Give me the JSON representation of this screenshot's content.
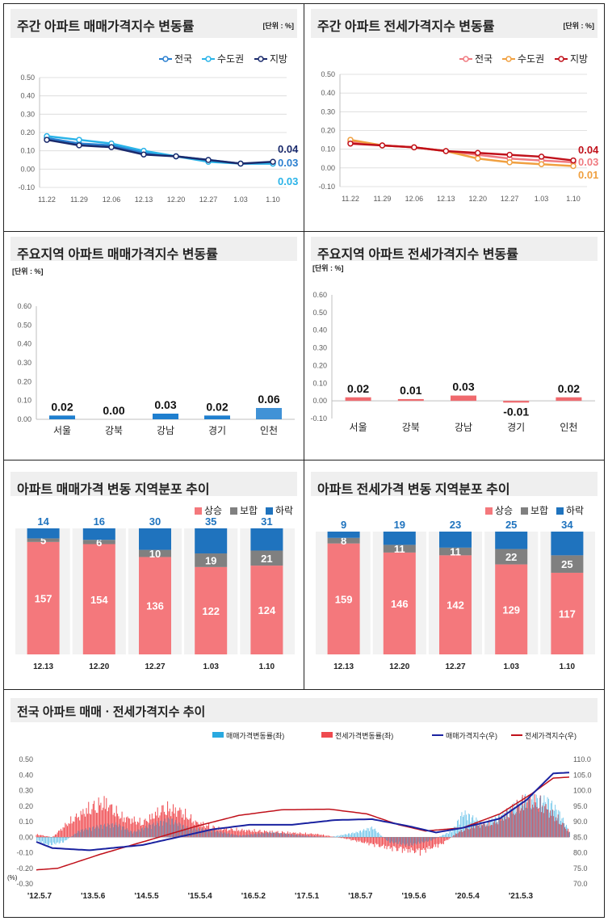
{
  "panels": {
    "p1": {
      "title": "주간 아파트 매매가격지수 변동률",
      "unit": "[단위 : %]"
    },
    "p2": {
      "title": "주간 아파트 전세가격지수 변동률",
      "unit": "[단위 : %]"
    },
    "p3": {
      "title": "주요지역 아파트 매매가격지수 변동률",
      "unit": "[단위 : %]"
    },
    "p4": {
      "title": "주요지역 아파트 전세가격지수 변동률",
      "unit": "[단위 : %]"
    },
    "p5": {
      "title": "아파트 매매가격 변동 지역분포 추이"
    },
    "p6": {
      "title": "아파트 전세가격 변동 지역분포 추이"
    },
    "p7": {
      "title": "전국 아파트 매매ㆍ전세가격지수 추이"
    }
  },
  "chart_data": [
    {
      "id": "weekly_sale",
      "type": "line",
      "x": [
        "11.22",
        "11.29",
        "12.06",
        "12.13",
        "12.20",
        "12.27",
        "1.03",
        "1.10"
      ],
      "ylim": [
        -0.1,
        0.5
      ],
      "yticks": [
        "-0.10",
        "0.00",
        "0.10",
        "0.20",
        "0.30",
        "0.40",
        "0.50"
      ],
      "series": [
        {
          "name": "전국",
          "color": "#2a7fd0",
          "values": [
            0.17,
            0.14,
            0.13,
            0.09,
            0.07,
            0.05,
            0.03,
            0.03
          ],
          "end_label": "0.03"
        },
        {
          "name": "수도권",
          "color": "#29b3e8",
          "values": [
            0.18,
            0.16,
            0.14,
            0.1,
            0.07,
            0.04,
            0.03,
            0.03
          ],
          "end_label": "0.03"
        },
        {
          "name": "지방",
          "color": "#1a2a6c",
          "values": [
            0.16,
            0.13,
            0.12,
            0.08,
            0.07,
            0.05,
            0.03,
            0.04
          ],
          "end_label": "0.04"
        }
      ]
    },
    {
      "id": "weekly_jeonse",
      "type": "line",
      "x": [
        "11.22",
        "11.29",
        "12.06",
        "12.13",
        "12.20",
        "12.27",
        "1.03",
        "1.10"
      ],
      "ylim": [
        -0.1,
        0.5
      ],
      "yticks": [
        "-0.10",
        "0.00",
        "0.10",
        "0.20",
        "0.30",
        "0.40",
        "0.50"
      ],
      "series": [
        {
          "name": "전국",
          "color": "#f07a80",
          "values": [
            0.14,
            0.12,
            0.11,
            0.09,
            0.07,
            0.05,
            0.04,
            0.03
          ],
          "end_label": "0.03"
        },
        {
          "name": "수도권",
          "color": "#f0a040",
          "values": [
            0.15,
            0.12,
            0.11,
            0.09,
            0.05,
            0.03,
            0.02,
            0.01
          ],
          "end_label": "0.01"
        },
        {
          "name": "지방",
          "color": "#c0101a",
          "values": [
            0.13,
            0.12,
            0.11,
            0.09,
            0.08,
            0.07,
            0.06,
            0.04
          ],
          "end_label": "0.04"
        }
      ]
    },
    {
      "id": "region_sale",
      "type": "bar",
      "categories": [
        "서울",
        "강북",
        "강남",
        "경기",
        "인천"
      ],
      "values": [
        0.02,
        0.0,
        0.03,
        0.02,
        0.06
      ],
      "labels": [
        "0.02",
        "0.00",
        "0.03",
        "0.02",
        "0.06"
      ],
      "ylim": [
        0,
        0.6
      ],
      "yticks": [
        "0.00",
        "0.10",
        "0.20",
        "0.30",
        "0.40",
        "0.50",
        "0.60"
      ]
    },
    {
      "id": "region_jeonse",
      "type": "bar",
      "categories": [
        "서울",
        "강북",
        "강남",
        "경기",
        "인천"
      ],
      "values": [
        0.02,
        0.01,
        0.03,
        -0.01,
        0.02
      ],
      "labels": [
        "0.02",
        "0.01",
        "0.03",
        "-0.01",
        "0.02"
      ],
      "ylim": [
        -0.1,
        0.6
      ],
      "yticks": [
        "-0.10",
        "0.00",
        "0.10",
        "0.20",
        "0.30",
        "0.40",
        "0.50",
        "0.60"
      ]
    },
    {
      "id": "dist_sale",
      "type": "bar",
      "stacked": true,
      "categories": [
        "12.13",
        "12.20",
        "12.27",
        "1.03",
        "1.10"
      ],
      "legend": [
        "상승",
        "보합",
        "하락"
      ],
      "colors": [
        "#f4787c",
        "#808080",
        "#1f73be"
      ],
      "series": [
        {
          "name": "상승",
          "values": [
            157,
            154,
            136,
            122,
            124
          ]
        },
        {
          "name": "보합",
          "values": [
            5,
            6,
            10,
            19,
            21
          ]
        },
        {
          "name": "하락",
          "values": [
            14,
            16,
            30,
            35,
            31
          ]
        }
      ]
    },
    {
      "id": "dist_jeonse",
      "type": "bar",
      "stacked": true,
      "categories": [
        "12.13",
        "12.20",
        "12.27",
        "1.03",
        "1.10"
      ],
      "legend": [
        "상승",
        "보합",
        "하락"
      ],
      "colors": [
        "#f4787c",
        "#808080",
        "#1f73be"
      ],
      "series": [
        {
          "name": "상승",
          "values": [
            159,
            146,
            142,
            129,
            117
          ]
        },
        {
          "name": "보합",
          "values": [
            8,
            11,
            11,
            22,
            25
          ]
        },
        {
          "name": "하락",
          "values": [
            9,
            19,
            23,
            25,
            34
          ]
        }
      ]
    },
    {
      "id": "national_trend",
      "type": "line",
      "x_ticks": [
        "'12.5.7",
        "'13.5.6",
        "'14.5.5",
        "'15.5.4",
        "'16.5.2",
        "'17.5.1",
        "'18.5.7",
        "'19.5.6",
        "'20.5.4",
        "'21.5.3"
      ],
      "y_left": [
        "-0.30",
        "-0.20",
        "-0.10",
        "0.00",
        "0.10",
        "0.20",
        "0.30",
        "0.40",
        "0.50"
      ],
      "y_left_unit": "(%)",
      "y_right": [
        "70.0",
        "75.0",
        "80.0",
        "85.0",
        "90.0",
        "95.0",
        "100.0",
        "105.0",
        "110.0"
      ],
      "legend": [
        "매매가격변동률(좌)",
        "전세가격변동률(좌)",
        "매매가격지수(우)",
        "전세가격지수(우)"
      ],
      "colors": [
        "#29a9e0",
        "#ef4a4f",
        "#1a22a0",
        "#c0101a"
      ],
      "sale_index_knots": [
        [
          0,
          83.5
        ],
        [
          0.03,
          81.5
        ],
        [
          0.1,
          80.8
        ],
        [
          0.2,
          82.5
        ],
        [
          0.26,
          84.8
        ],
        [
          0.33,
          87.5
        ],
        [
          0.4,
          89.0
        ],
        [
          0.48,
          89.0
        ],
        [
          0.56,
          90.5
        ],
        [
          0.63,
          90.8
        ],
        [
          0.7,
          88.5
        ],
        [
          0.75,
          86.5
        ],
        [
          0.8,
          88.0
        ],
        [
          0.87,
          91.0
        ],
        [
          0.92,
          97.0
        ],
        [
          0.97,
          105.5
        ],
        [
          1,
          105.8
        ]
      ],
      "jeonse_index_knots": [
        [
          0,
          74.5
        ],
        [
          0.04,
          75.0
        ],
        [
          0.12,
          79.5
        ],
        [
          0.2,
          83.5
        ],
        [
          0.3,
          88.5
        ],
        [
          0.38,
          92.0
        ],
        [
          0.46,
          93.8
        ],
        [
          0.55,
          94.0
        ],
        [
          0.62,
          92.5
        ],
        [
          0.68,
          89.0
        ],
        [
          0.73,
          87.0
        ],
        [
          0.8,
          88.0
        ],
        [
          0.87,
          92.5
        ],
        [
          0.93,
          99.0
        ],
        [
          0.97,
          104.0
        ],
        [
          1,
          104.3
        ]
      ],
      "sale_change_knots": [
        [
          0,
          -0.02
        ],
        [
          0.02,
          -0.05
        ],
        [
          0.05,
          -0.03
        ],
        [
          0.08,
          0.04
        ],
        [
          0.12,
          0.07
        ],
        [
          0.15,
          0.08
        ],
        [
          0.18,
          0.03
        ],
        [
          0.22,
          0.08
        ],
        [
          0.25,
          0.11
        ],
        [
          0.28,
          0.06
        ],
        [
          0.33,
          0.04
        ],
        [
          0.38,
          0.01
        ],
        [
          0.44,
          0.03
        ],
        [
          0.5,
          0.01
        ],
        [
          0.55,
          0.0
        ],
        [
          0.6,
          0.03
        ],
        [
          0.63,
          0.06
        ],
        [
          0.66,
          -0.03
        ],
        [
          0.7,
          -0.05
        ],
        [
          0.74,
          -0.02
        ],
        [
          0.78,
          0.04
        ],
        [
          0.8,
          0.15
        ],
        [
          0.84,
          0.08
        ],
        [
          0.88,
          0.15
        ],
        [
          0.92,
          0.24
        ],
        [
          0.96,
          0.22
        ],
        [
          0.98,
          0.15
        ],
        [
          1,
          0.03
        ]
      ],
      "jeonse_change_knots": [
        [
          0,
          0.02
        ],
        [
          0.03,
          0.0
        ],
        [
          0.06,
          0.1
        ],
        [
          0.1,
          0.2
        ],
        [
          0.13,
          0.24
        ],
        [
          0.16,
          0.14
        ],
        [
          0.2,
          0.1
        ],
        [
          0.24,
          0.2
        ],
        [
          0.27,
          0.18
        ],
        [
          0.3,
          0.1
        ],
        [
          0.34,
          0.06
        ],
        [
          0.38,
          0.05
        ],
        [
          0.43,
          0.04
        ],
        [
          0.48,
          0.03
        ],
        [
          0.53,
          0.02
        ],
        [
          0.58,
          -0.01
        ],
        [
          0.63,
          -0.05
        ],
        [
          0.67,
          -0.08
        ],
        [
          0.72,
          -0.1
        ],
        [
          0.76,
          -0.05
        ],
        [
          0.79,
          0.03
        ],
        [
          0.82,
          0.08
        ],
        [
          0.86,
          0.1
        ],
        [
          0.89,
          0.18
        ],
        [
          0.92,
          0.26
        ],
        [
          0.95,
          0.22
        ],
        [
          0.98,
          0.12
        ],
        [
          1,
          0.04
        ]
      ]
    }
  ]
}
